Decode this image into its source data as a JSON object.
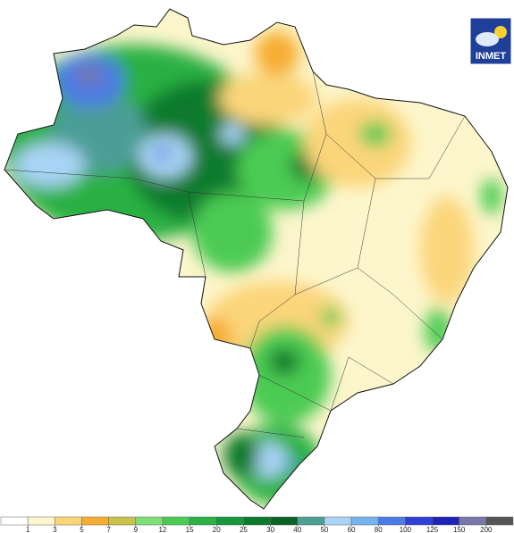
{
  "logo": {
    "text": "INMET"
  },
  "legend": {
    "ticks": [
      1,
      3,
      5,
      7,
      9,
      12,
      15,
      20,
      25,
      30,
      40,
      50,
      60,
      80,
      100,
      125,
      150,
      200
    ],
    "colors": [
      "#ffffff",
      "#fdf6cc",
      "#fbd57a",
      "#f6ad33",
      "#c8c24a",
      "#7fe07a",
      "#4ccb52",
      "#2bb043",
      "#17963a",
      "#0b7a2d",
      "#0a6426",
      "#4c9e96",
      "#a9d4f5",
      "#74b3ee",
      "#4b7be6",
      "#2f3fd8",
      "#1e22b5",
      "#7777aa",
      "#555555"
    ]
  }
}
